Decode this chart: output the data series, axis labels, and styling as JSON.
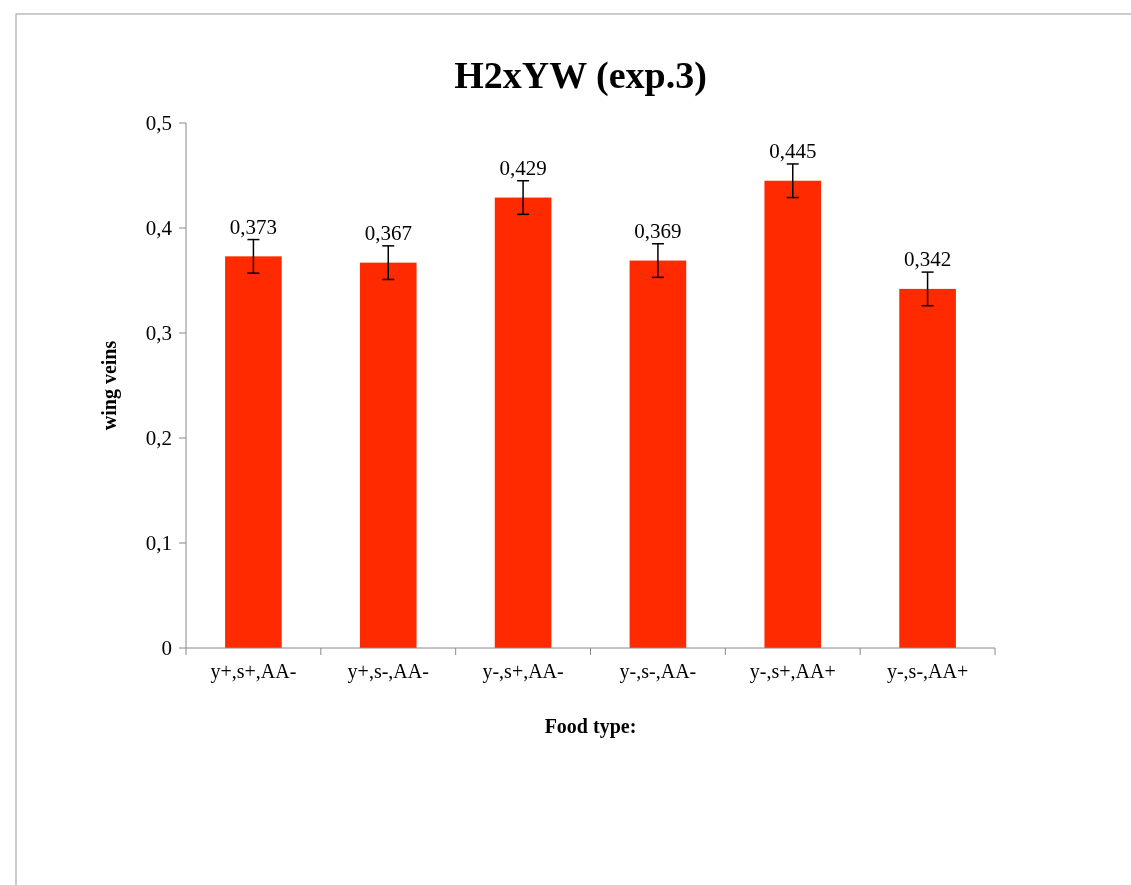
{
  "chart_data": {
    "type": "bar",
    "title": "H2xYW (exp.3)",
    "xlabel": "Food type:",
    "ylabel": "wing veins",
    "categories": [
      "y+,s+,AA-",
      "y+,s-,AA-",
      "y-,s+,AA-",
      "y-,s-,AA-",
      "y-,s+,AA+",
      "y-,s-,AA+"
    ],
    "values": [
      0.373,
      0.367,
      0.429,
      0.369,
      0.445,
      0.342
    ],
    "errors": [
      0.016,
      0.016,
      0.016,
      0.016,
      0.016,
      0.016
    ],
    "value_labels": [
      "0,373",
      "0,367",
      "0,429",
      "0,369",
      "0,445",
      "0,342"
    ],
    "color": "#ff2a00",
    "ylim": [
      0,
      0.5
    ],
    "yticks": [
      {
        "value": 0,
        "label": "0"
      },
      {
        "value": 0.1,
        "label": "0,1"
      },
      {
        "value": 0.2,
        "label": "0,2"
      },
      {
        "value": 0.3,
        "label": "0,3"
      },
      {
        "value": 0.4,
        "label": "0,4"
      },
      {
        "value": 0.5,
        "label": "0,5"
      }
    ],
    "grid": false
  }
}
